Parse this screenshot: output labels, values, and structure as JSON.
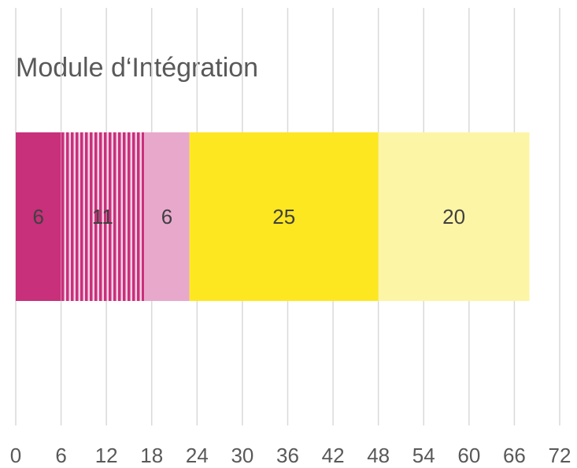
{
  "chart_data": {
    "type": "stacked-bar-horizontal",
    "title": "Module d‘Intégration",
    "series": [
      {
        "color": "#c8307b",
        "values": [
          6
        ]
      },
      {
        "color": "#c8307b",
        "pattern": "vertical-stripes",
        "values": [
          11
        ]
      },
      {
        "color": "#e8a8cc",
        "values": [
          6
        ]
      },
      {
        "color": "#fde720",
        "values": [
          25
        ]
      },
      {
        "color": "#fdf5a6",
        "values": [
          20
        ]
      }
    ],
    "xlim": [
      0,
      72
    ],
    "xticks": [
      0,
      6,
      12,
      18,
      24,
      30,
      36,
      42,
      48,
      54,
      60,
      66,
      72
    ],
    "grid": true
  }
}
